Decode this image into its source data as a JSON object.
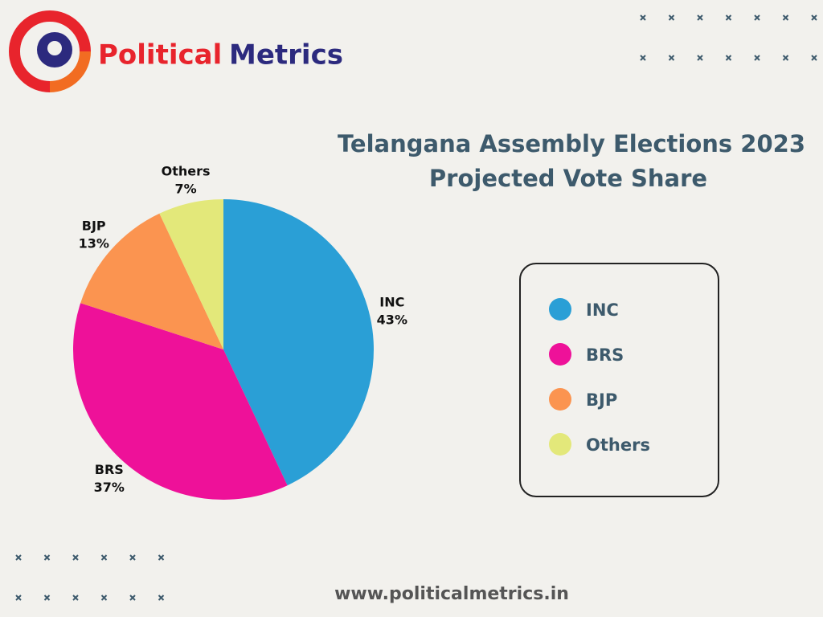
{
  "brand": {
    "first_word": "Political",
    "second_word": "Metrics"
  },
  "footer": "www.politicalmetrics.in",
  "chart_data": {
    "type": "pie",
    "title": "Telangana Assembly  Elections 2023",
    "subtitle": "Projected Vote Share",
    "categories": [
      "INC",
      "BRS",
      "BJP",
      "Others"
    ],
    "values": [
      43,
      37,
      13,
      7
    ],
    "value_labels": [
      "43%",
      "37%",
      "13%",
      "7%"
    ],
    "colors": [
      "#2a9fd6",
      "#ee1199",
      "#fb9450",
      "#e3e87a"
    ],
    "legend": "right"
  }
}
